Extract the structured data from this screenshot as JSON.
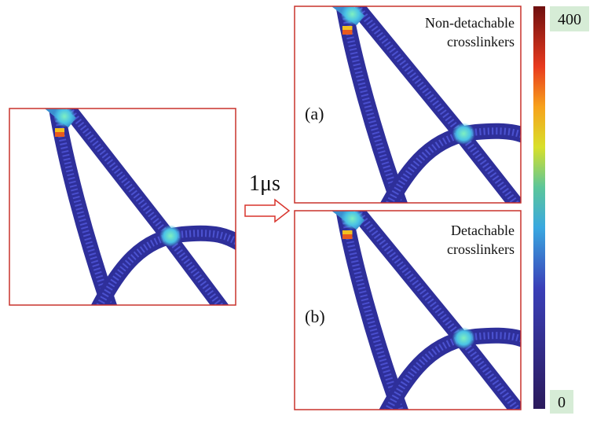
{
  "time_label": "1μs",
  "panels": [
    {
      "label": "(a)",
      "caption": [
        "Non-detachable",
        "crosslinkers"
      ]
    },
    {
      "label": "(b)",
      "caption": [
        "Detachable",
        "crosslinkers"
      ]
    }
  ],
  "colorbar": {
    "max": 400,
    "min": 0
  }
}
